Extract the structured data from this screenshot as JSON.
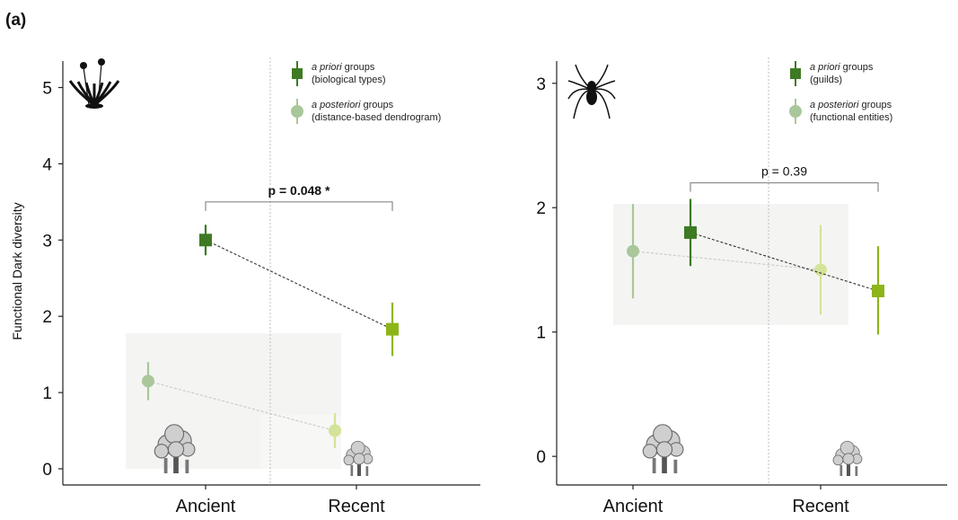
{
  "panel_label": "(a)",
  "y_axis_title": "Functional Dark diversity",
  "chart_data": [
    {
      "type": "scatter",
      "panel": "plants",
      "icon": "dandelion-plant-icon",
      "categories": [
        "Ancient",
        "Recent"
      ],
      "ylim": [
        0,
        5.3
      ],
      "yticks": [
        0,
        1,
        2,
        3,
        4,
        5
      ],
      "ylabel": "Functional Dark diversity",
      "grid": false,
      "legend_position": "top-right",
      "legend": [
        {
          "italic": "a priori",
          "text": " groups",
          "sub": "(biological types)",
          "marker": "square",
          "color": "#3d7a23"
        },
        {
          "italic": "a posteriori",
          "text": " groups",
          "sub": "(distance-based dendrogram)",
          "marker": "circle",
          "color": "#a9c79a"
        }
      ],
      "series": [
        {
          "name": "a priori groups",
          "marker": "square",
          "colors": [
            "#3d7a23",
            "#8db518"
          ],
          "points": [
            {
              "category": "Ancient",
              "value": 3.0,
              "lower": 2.8,
              "upper": 3.2
            },
            {
              "category": "Recent",
              "value": 1.83,
              "lower": 1.48,
              "upper": 2.18
            }
          ],
          "line_color": "#333333"
        },
        {
          "name": "a posteriori groups",
          "marker": "circle",
          "colors": [
            "#a9c79a",
            "#d4e39a"
          ],
          "points": [
            {
              "category": "Ancient",
              "value": 1.15,
              "lower": 0.9,
              "upper": 1.4
            },
            {
              "category": "Recent",
              "value": 0.5,
              "lower": 0.27,
              "upper": 0.73
            }
          ],
          "line_color": "#c8c8c8"
        }
      ],
      "annotation": {
        "text": "p = 0.048 *",
        "bold": true,
        "y": 3.5
      }
    },
    {
      "type": "scatter",
      "panel": "spiders",
      "icon": "spider-icon",
      "categories": [
        "Ancient",
        "Recent"
      ],
      "ylim": [
        -0.1,
        3.15
      ],
      "yticks": [
        0,
        1,
        2,
        3
      ],
      "grid": false,
      "legend_position": "top-right",
      "legend": [
        {
          "italic": "a priori",
          "text": " groups",
          "sub": "(guilds)",
          "marker": "square",
          "color": "#3d7a23"
        },
        {
          "italic": "a posteriori",
          "text": " groups",
          "sub": "(functional entities)",
          "marker": "circle",
          "color": "#a9c79a"
        }
      ],
      "series": [
        {
          "name": "a priori groups",
          "marker": "square",
          "colors": [
            "#3d7a23",
            "#8db518"
          ],
          "points": [
            {
              "category": "Ancient",
              "value": 1.8,
              "lower": 1.53,
              "upper": 2.07
            },
            {
              "category": "Recent",
              "value": 1.33,
              "lower": 0.98,
              "upper": 1.69
            }
          ],
          "line_color": "#333333"
        },
        {
          "name": "a posteriori groups",
          "marker": "circle",
          "colors": [
            "#a9c79a",
            "#d4e39a"
          ],
          "points": [
            {
              "category": "Ancient",
              "value": 1.65,
              "lower": 1.27,
              "upper": 2.03
            },
            {
              "category": "Recent",
              "value": 1.5,
              "lower": 1.14,
              "upper": 1.86
            }
          ],
          "line_color": "#c8c8c8"
        }
      ],
      "annotation": {
        "text": "p = 0.39",
        "bold": false,
        "y": 2.2
      }
    }
  ]
}
